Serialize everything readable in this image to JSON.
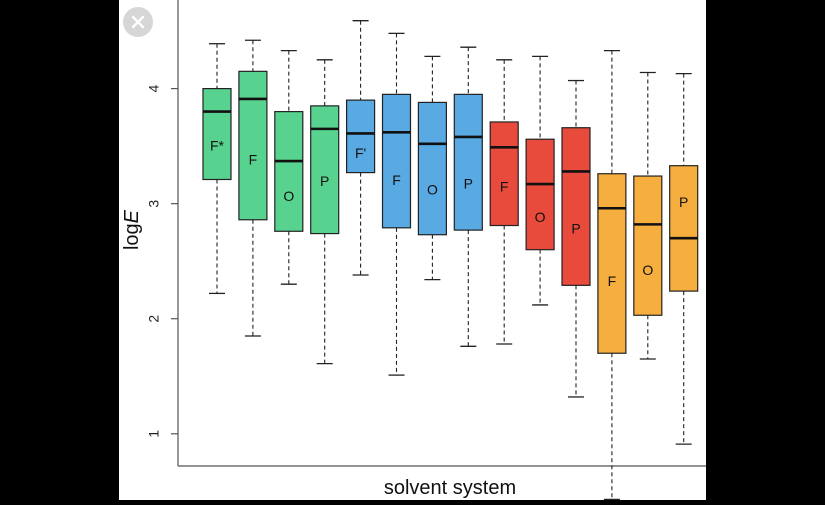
{
  "chart_data": {
    "type": "box",
    "title": "",
    "xlabel": "solvent system",
    "ylabel_prefix": "log",
    "ylabel_var": "E",
    "yticks": [
      "1",
      "2",
      "3",
      "4"
    ],
    "ylim": [
      0.72,
      4.77
    ],
    "grid": false,
    "colors": {
      "green": "#58d38f",
      "blue": "#59a9e3",
      "red": "#e84b3c",
      "orange": "#f6ae3e"
    },
    "boxes": [
      {
        "label": "F*",
        "color": "green",
        "whisker_low": 2.22,
        "q1": 3.21,
        "median": 3.8,
        "q3": 4.0,
        "whisker_high": 4.39
      },
      {
        "label": "F",
        "color": "green",
        "whisker_low": 1.85,
        "q1": 2.86,
        "median": 3.91,
        "q3": 4.15,
        "whisker_high": 4.42
      },
      {
        "label": "O",
        "color": "green",
        "whisker_low": 2.3,
        "q1": 2.76,
        "median": 3.37,
        "q3": 3.8,
        "whisker_high": 4.33
      },
      {
        "label": "P",
        "color": "green",
        "whisker_low": 1.61,
        "q1": 2.74,
        "median": 3.65,
        "q3": 3.85,
        "whisker_high": 4.25
      },
      {
        "label": "F'",
        "color": "blue",
        "whisker_low": 2.38,
        "q1": 3.27,
        "median": 3.61,
        "q3": 3.9,
        "whisker_high": 4.59
      },
      {
        "label": "F",
        "color": "blue",
        "whisker_low": 1.51,
        "q1": 2.79,
        "median": 3.62,
        "q3": 3.95,
        "whisker_high": 4.48
      },
      {
        "label": "O",
        "color": "blue",
        "whisker_low": 2.34,
        "q1": 2.73,
        "median": 3.52,
        "q3": 3.88,
        "whisker_high": 4.28
      },
      {
        "label": "P",
        "color": "blue",
        "whisker_low": 1.76,
        "q1": 2.77,
        "median": 3.58,
        "q3": 3.95,
        "whisker_high": 4.36
      },
      {
        "label": "F",
        "color": "red",
        "whisker_low": 1.78,
        "q1": 2.81,
        "median": 3.49,
        "q3": 3.71,
        "whisker_high": 4.25
      },
      {
        "label": "O",
        "color": "red",
        "whisker_low": 2.12,
        "q1": 2.6,
        "median": 3.17,
        "q3": 3.56,
        "whisker_high": 4.28
      },
      {
        "label": "P",
        "color": "red",
        "whisker_low": 1.32,
        "q1": 2.29,
        "median": 3.28,
        "q3": 3.66,
        "whisker_high": 4.07
      },
      {
        "label": "F",
        "color": "orange",
        "whisker_low": 0.43,
        "q1": 1.7,
        "median": 2.96,
        "q3": 3.26,
        "whisker_high": 4.33
      },
      {
        "label": "O",
        "color": "orange",
        "whisker_low": 1.65,
        "q1": 2.03,
        "median": 2.82,
        "q3": 3.24,
        "whisker_high": 4.14
      },
      {
        "label": "P",
        "color": "orange",
        "whisker_low": 0.91,
        "q1": 2.24,
        "median": 2.7,
        "q3": 3.33,
        "whisker_high": 4.13
      }
    ]
  },
  "controls": {
    "close_icon": "close-icon"
  }
}
